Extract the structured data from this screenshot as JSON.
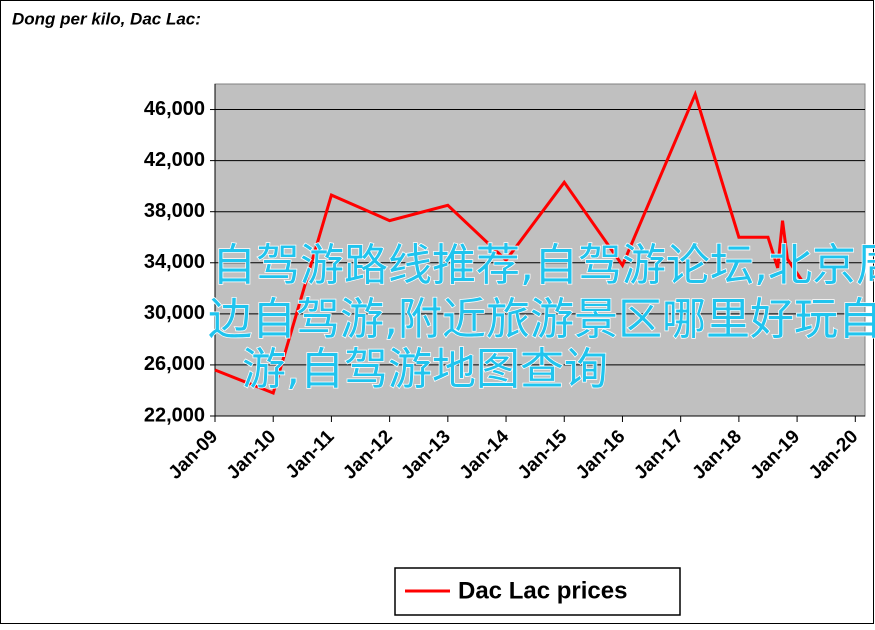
{
  "chart_data": {
    "type": "line",
    "title": "Dong per kilo, Dac Lac:",
    "x": [
      "2009-01",
      "2010-01",
      "2011-01",
      "2012-01",
      "2013-01",
      "2014-01",
      "2015-01",
      "2016-01",
      "2017-04",
      "2018-01",
      "2018-07",
      "2018-09",
      "2018-10",
      "2018-11",
      "2019-02"
    ],
    "series": [
      {
        "name": "Dac Lac prices",
        "color": "#ff0000",
        "values": [
          25600,
          23800,
          39300,
          37300,
          38500,
          34200,
          40300,
          33800,
          47200,
          36000,
          36000,
          33600,
          37300,
          34300,
          32600
        ]
      }
    ],
    "xlim": [
      "2009-01",
      "2020-03"
    ],
    "xticks": [
      {
        "value": "2009-01",
        "label": "Jan-09"
      },
      {
        "value": "2010-01",
        "label": "Jan-10"
      },
      {
        "value": "2011-01",
        "label": "Jan-11"
      },
      {
        "value": "2012-01",
        "label": "Jan-12"
      },
      {
        "value": "2013-01",
        "label": "Jan-13"
      },
      {
        "value": "2014-01",
        "label": "Jan-14"
      },
      {
        "value": "2015-01",
        "label": "Jan-15"
      },
      {
        "value": "2016-01",
        "label": "Jan-16"
      },
      {
        "value": "2017-01",
        "label": "Jan-17"
      },
      {
        "value": "2018-01",
        "label": "Jan-18"
      },
      {
        "value": "2019-01",
        "label": "Jan-19"
      },
      {
        "value": "2020-01",
        "label": "Jan-20"
      }
    ],
    "ylim": [
      22000,
      48000
    ],
    "yticks": [
      {
        "value": 22000,
        "label": "22,000"
      },
      {
        "value": 26000,
        "label": "26,000"
      },
      {
        "value": 30000,
        "label": "30,000"
      },
      {
        "value": 34000,
        "label": "34,000"
      },
      {
        "value": 38000,
        "label": "38,000"
      },
      {
        "value": 42000,
        "label": "42,000"
      },
      {
        "value": 46000,
        "label": "46,000"
      }
    ],
    "grid": true,
    "plot_background": "#c0c0c0",
    "legend": "bottom",
    "annotations": [
      "自驾游路线推荐,自驾游论坛,北京周",
      "边自驾游,附近旅游景区哪里好玩自驾",
      "游,自驾游地图查询"
    ]
  }
}
